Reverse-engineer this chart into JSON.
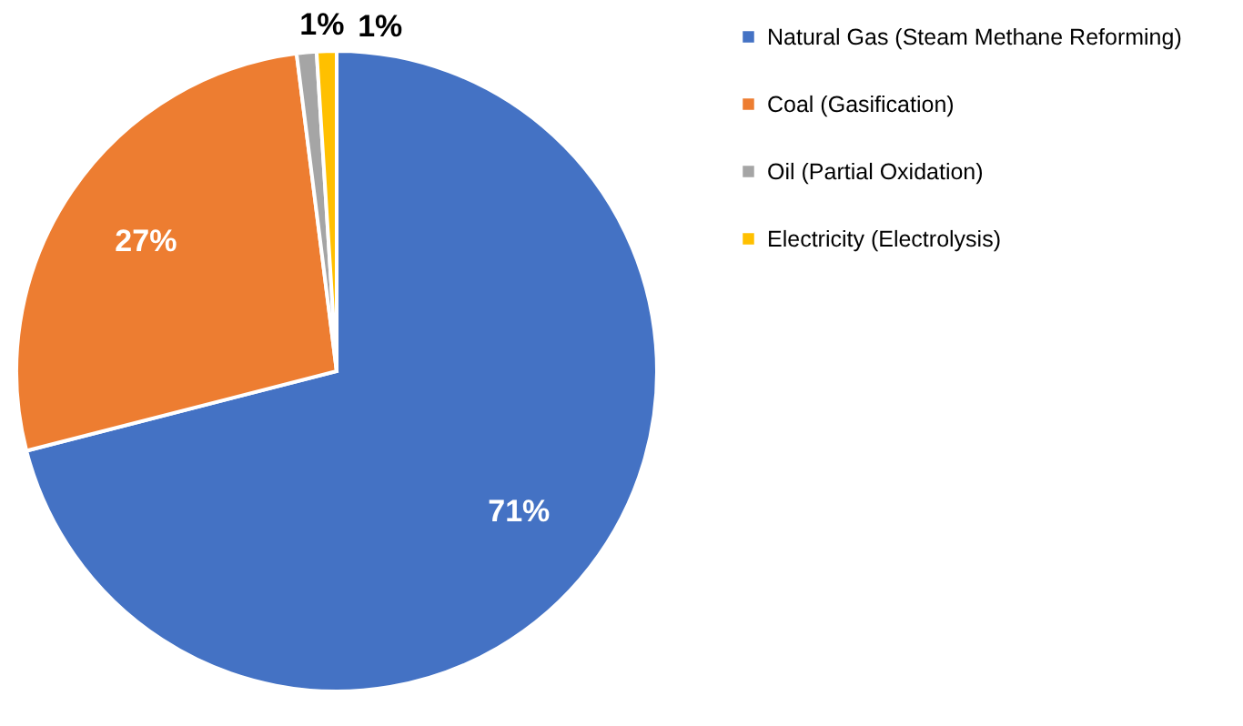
{
  "chart_data": {
    "type": "pie",
    "categories": [
      "Natural Gas (Steam Methane Reforming)",
      "Coal (Gasification)",
      "Oil (Partial Oxidation)",
      "Electricity (Electrolysis)"
    ],
    "values": [
      71,
      27,
      1,
      1
    ],
    "colors": [
      "#4472c4",
      "#ed7d31",
      "#a5a5a5",
      "#ffc000"
    ],
    "value_labels": [
      "71%",
      "27%",
      "1%",
      "1%"
    ],
    "legend": "right"
  }
}
